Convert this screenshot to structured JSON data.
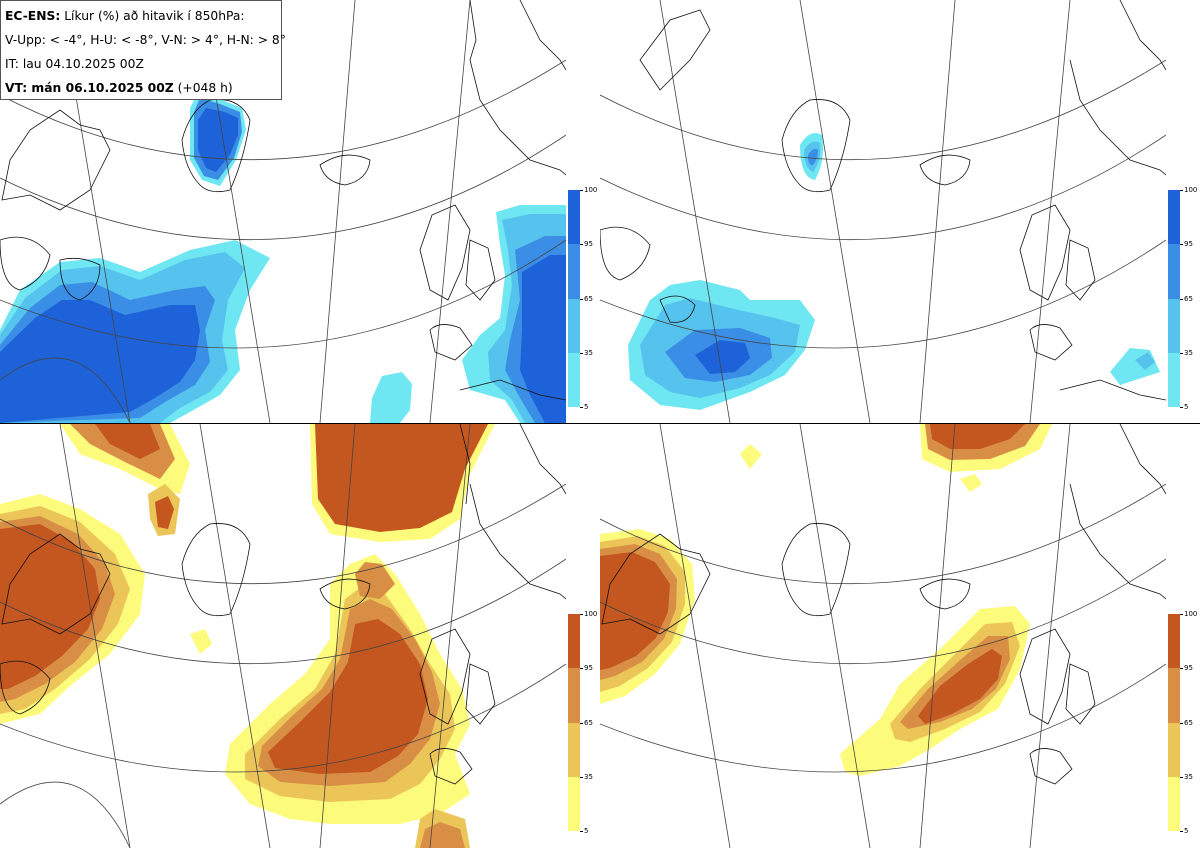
{
  "legend": {
    "model": "EC-ENS:",
    "description": "Líkur (%) að hitavik í 850hPa:",
    "thresholds": "V-Upp: < -4°, H-U: < -8°, V-N: > 4°, H-N: > 8°",
    "init_time": "IT: lau 04.10.2025 00Z",
    "valid_label": "VT: mán 06.10.2025 00Z",
    "valid_lead": "(+048 h)"
  },
  "colorbars": {
    "cold": {
      "ticks": [
        "100",
        "95",
        "65",
        "35",
        "5"
      ],
      "colors": [
        "#1d62d9",
        "#3b8ee6",
        "#56c3ee",
        "#6fe7f3"
      ]
    },
    "warm": {
      "ticks": [
        "100",
        "95",
        "65",
        "35",
        "5"
      ],
      "colors": [
        "#c4561f",
        "#d98e45",
        "#ecc558",
        "#fdfb7c"
      ]
    }
  },
  "panels": [
    {
      "id": "v-upp",
      "name": "cold-anomaly-moderate-panel"
    },
    {
      "id": "h-u",
      "name": "cold-anomaly-strong-panel"
    },
    {
      "id": "v-n",
      "name": "warm-anomaly-moderate-panel"
    },
    {
      "id": "h-n",
      "name": "warm-anomaly-strong-panel"
    }
  ]
}
